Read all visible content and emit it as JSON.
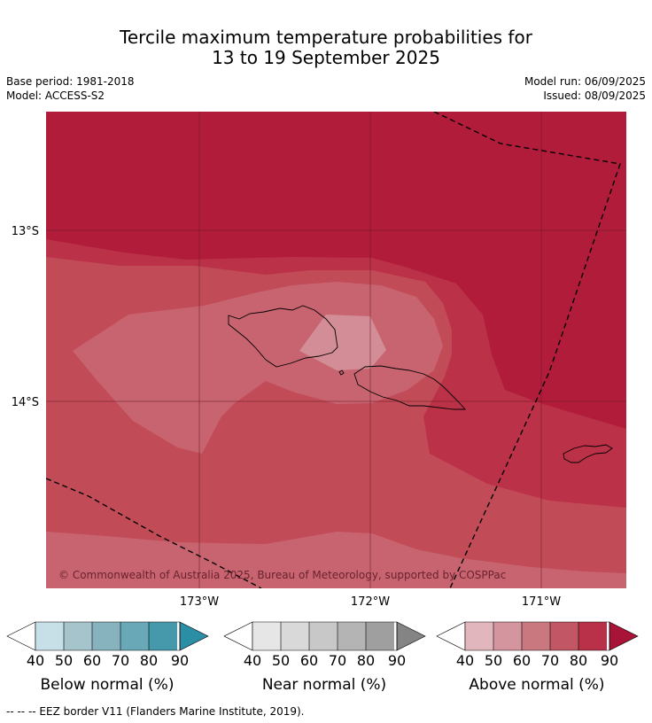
{
  "header": {
    "title_line1": "Tercile maximum temperature probabilities for",
    "title_line2": "13 to 19 September 2025",
    "base_period": "Base period: 1981-2018",
    "model": "Model: ACCESS-S2",
    "model_run": "Model run: 06/09/2025",
    "issued": "Issued: 08/09/2025"
  },
  "map": {
    "lat_labels": [
      "13°S",
      "14°S"
    ],
    "lon_labels": [
      "173°W",
      "172°W",
      "171°W"
    ],
    "copyright": "© Commonwealth of Australia 2025, Bureau of Meteorology, supported by COSPPac",
    "colors": {
      "above_90": "#b01c3a",
      "above_80": "#bb3148",
      "above_70": "#c14b57",
      "above_60": "#c86470",
      "above_50": "#d38d96",
      "gridline": "#6b1a26",
      "land_outline": "#000000"
    }
  },
  "colorbars": [
    {
      "title": "Below normal (%)",
      "ticks": [
        "40",
        "50",
        "60",
        "70",
        "80",
        "90"
      ],
      "colors": [
        "#ffffff",
        "#c7dfe6",
        "#a6c4cb",
        "#87b3bf",
        "#69a9b7",
        "#4699ab",
        "#2b8ea5"
      ]
    },
    {
      "title": "Near normal (%)",
      "ticks": [
        "40",
        "50",
        "60",
        "70",
        "80",
        "90"
      ],
      "colors": [
        "#ffffff",
        "#e6e6e6",
        "#d9d9d9",
        "#c8c8c8",
        "#b4b4b4",
        "#9f9f9f",
        "#848484"
      ]
    },
    {
      "title": "Above normal (%)",
      "ticks": [
        "40",
        "50",
        "60",
        "70",
        "80",
        "90"
      ],
      "colors": [
        "#ffffff",
        "#e1b7bd",
        "#d4959e",
        "#c97880",
        "#c35664",
        "#b93149",
        "#a81437"
      ]
    }
  ],
  "footnote": "--  --  -- EEZ border V11 (Flanders Marine Institute, 2019)."
}
